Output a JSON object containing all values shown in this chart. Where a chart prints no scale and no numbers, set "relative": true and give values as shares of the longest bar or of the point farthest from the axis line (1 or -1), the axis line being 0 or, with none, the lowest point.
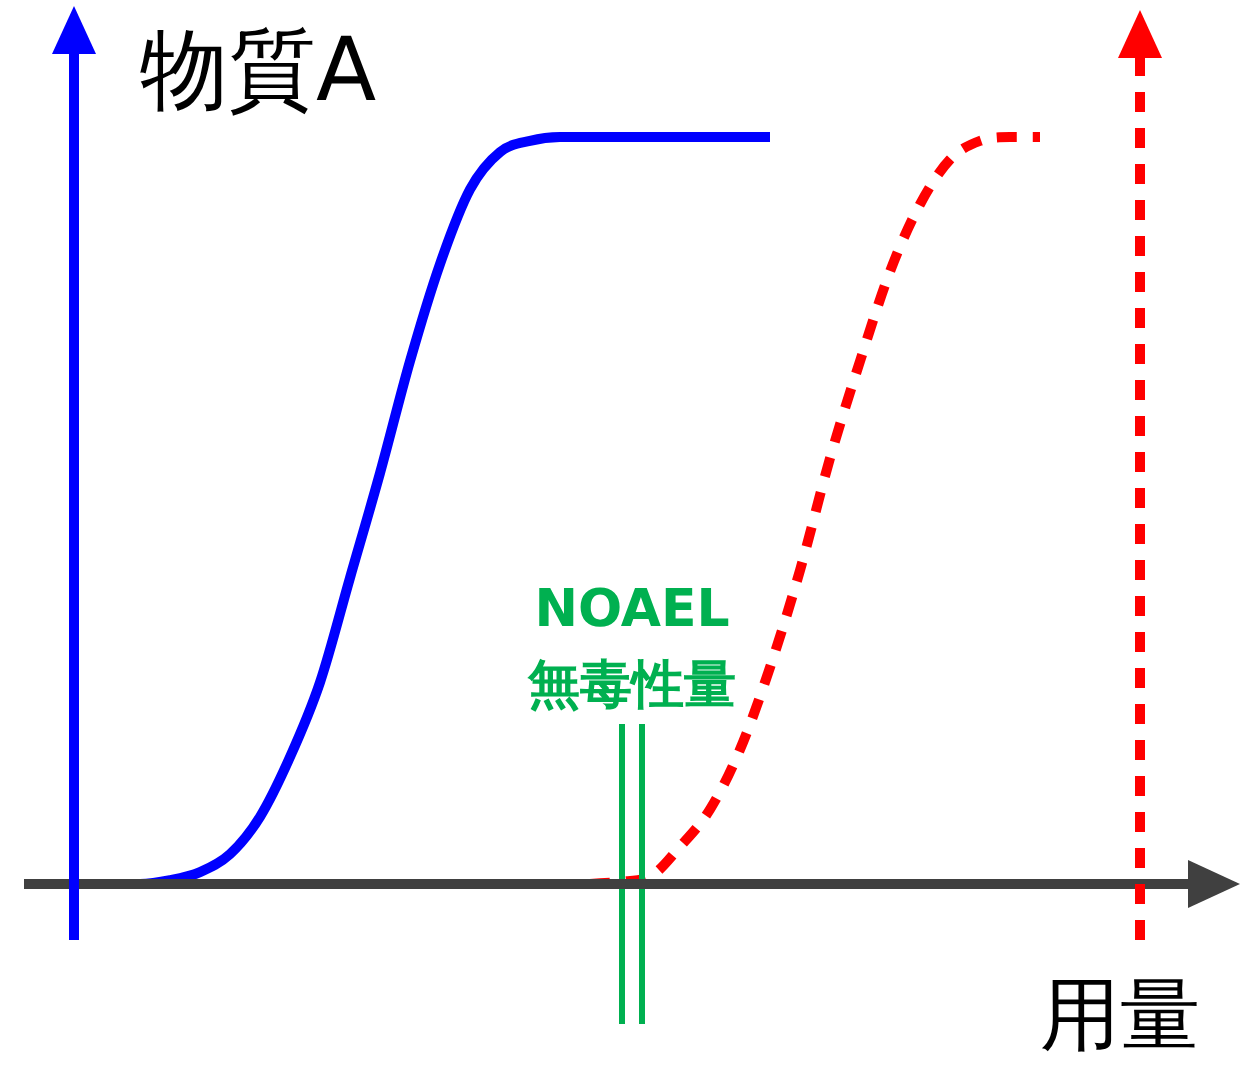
{
  "chart_data": {
    "type": "line",
    "relative": true,
    "ylabel": "物質A",
    "xlabel": "用量",
    "tick_labels": false,
    "legend": false,
    "marker": "none",
    "categories": [
      null,
      null,
      null,
      null,
      null,
      null,
      null,
      null,
      null,
      null,
      null,
      null,
      null,
      null,
      null,
      null,
      null,
      null,
      null,
      null,
      null,
      null,
      null,
      null,
      null,
      null,
      null,
      null,
      null,
      null,
      null,
      null
    ],
    "series": [
      {
        "color": "#0000ff",
        "line_style": "solid",
        "values": [
          0,
          0,
          0.005,
          0.016,
          0.04,
          0.09,
          0.17,
          0.27,
          0.41,
          0.55,
          0.7,
          0.83,
          0.93,
          0.98,
          0.995,
          1,
          1,
          1,
          1,
          1,
          1,
          1,
          1,
          null,
          null,
          null,
          null,
          null,
          null,
          null,
          null,
          null
        ]
      },
      {
        "color": "#ff0000",
        "line_style": "dashed",
        "values": [
          null,
          null,
          null,
          null,
          null,
          null,
          null,
          null,
          null,
          null,
          null,
          null,
          null,
          null,
          null,
          null,
          0,
          0.003,
          0.01,
          0.05,
          0.1,
          0.18,
          0.29,
          0.42,
          0.57,
          0.7,
          0.82,
          0.91,
          0.97,
          0.995,
          1,
          1
        ]
      }
    ],
    "annotations": [
      "NOAEL\n無毒性量"
    ]
  }
}
